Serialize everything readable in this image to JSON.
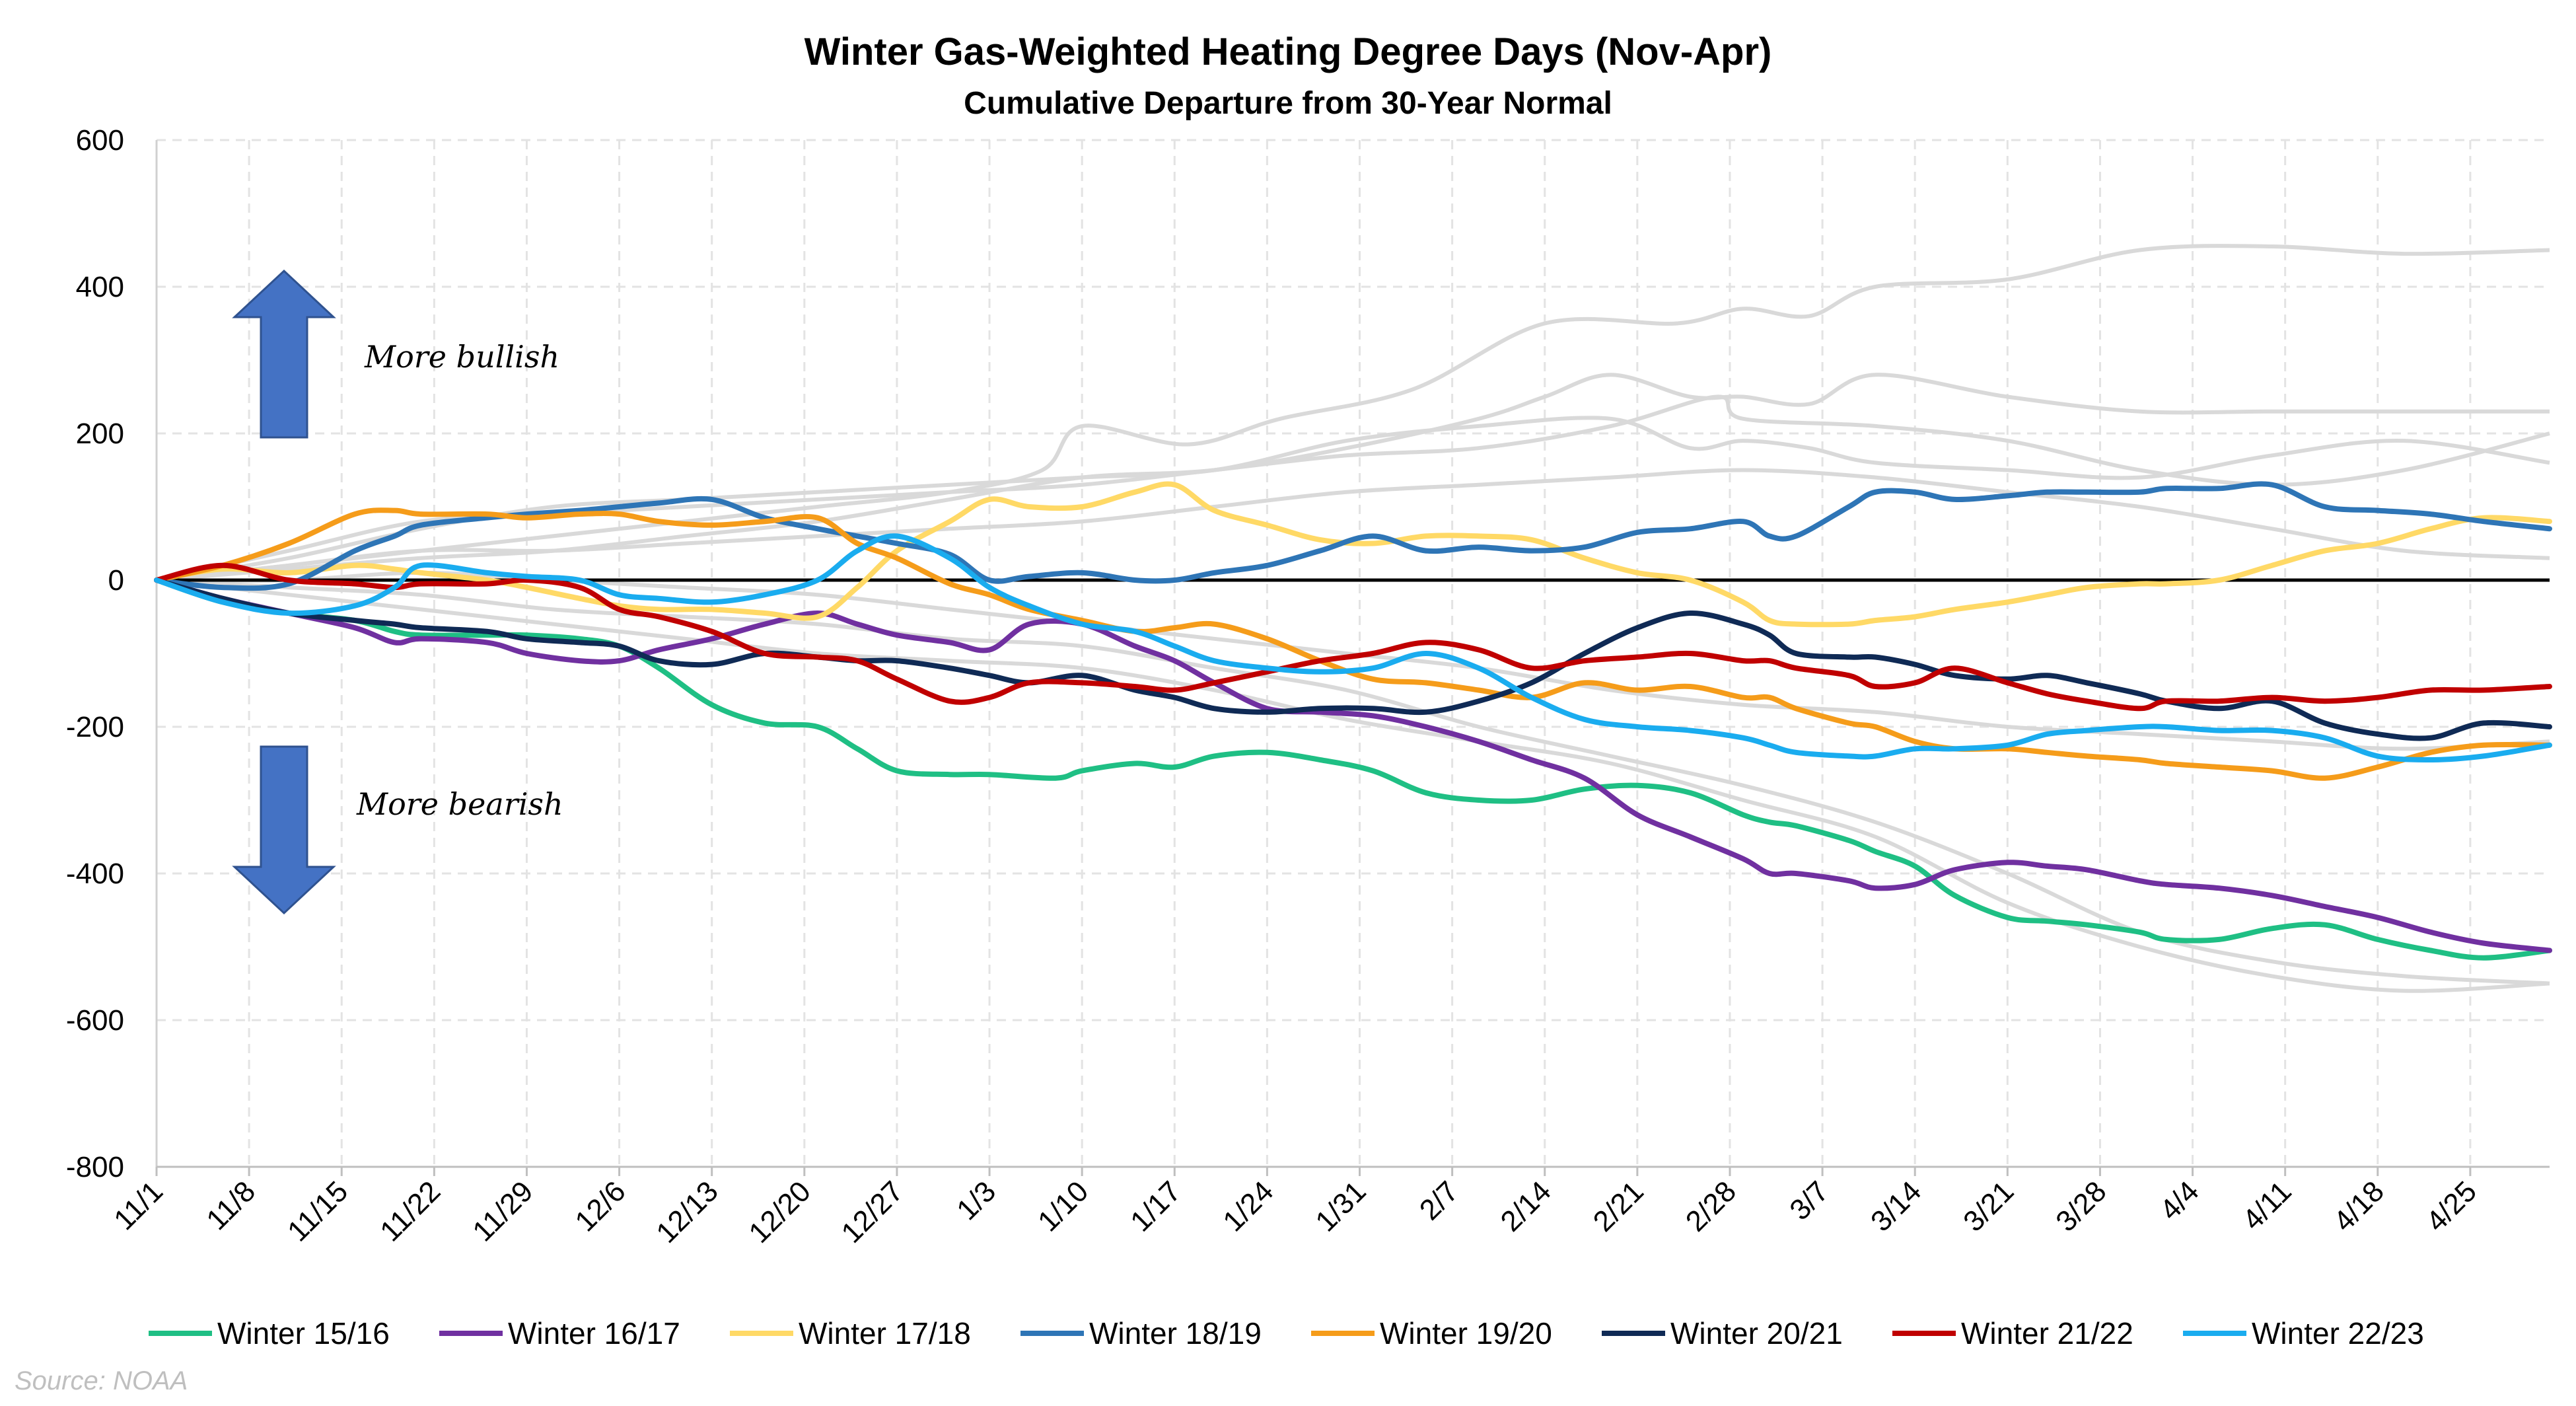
{
  "chart_data": {
    "type": "line",
    "title": "Winter Gas-Weighted Heating Degree Days (Nov-Apr)",
    "subtitle": "Cumulative Departure from 30-Year Normal",
    "ylim": [
      -800,
      600
    ],
    "yticks": [
      600,
      400,
      200,
      0,
      -200,
      -400,
      -600,
      -800
    ],
    "ytick_labels": [
      "600",
      "400",
      "200",
      "0",
      "-200",
      "-400",
      "-600",
      "-800"
    ],
    "xlim": [
      0,
      181
    ],
    "xtick_positions": [
      0,
      7,
      14,
      21,
      28,
      35,
      42,
      49,
      56,
      63,
      70,
      77,
      84,
      91,
      98,
      105,
      112,
      119,
      126,
      133,
      140,
      147,
      154,
      161,
      168,
      175
    ],
    "xtick_labels": [
      "11/1",
      "11/8",
      "11/15",
      "11/22",
      "11/29",
      "12/6",
      "12/13",
      "12/20",
      "12/27",
      "1/3",
      "1/10",
      "1/17",
      "1/24",
      "1/31",
      "2/7",
      "2/14",
      "2/21",
      "2/28",
      "3/7",
      "3/14",
      "3/21",
      "3/28",
      "4/4",
      "4/11",
      "4/18",
      "4/25"
    ],
    "grid": "dashed",
    "zero_line": true,
    "annotations": {
      "bullish": "More bullish",
      "bearish": "More bearish",
      "arrow_color": "#4472C4"
    },
    "source": "Source: NOAA",
    "legend_position": "bottom",
    "background_color": "#d9d9d9",
    "background_series": [
      {
        "x": [
          0,
          10,
          20,
          30,
          40,
          50,
          60,
          67,
          70,
          78,
          85,
          95,
          105,
          115,
          120,
          125,
          130,
          140,
          150,
          160,
          170,
          181
        ],
        "values": [
          0,
          20,
          40,
          60,
          80,
          100,
          120,
          150,
          210,
          185,
          220,
          260,
          350,
          350,
          370,
          360,
          400,
          410,
          450,
          455,
          445,
          450
        ]
      },
      {
        "x": [
          0,
          10,
          20,
          30,
          40,
          50,
          60,
          70,
          80,
          90,
          100,
          105,
          110,
          116,
          120,
          125,
          130,
          140,
          150,
          160,
          170,
          181
        ],
        "values": [
          0,
          15,
          30,
          40,
          60,
          80,
          110,
          140,
          150,
          180,
          220,
          250,
          280,
          250,
          250,
          240,
          280,
          250,
          230,
          230,
          230,
          230
        ]
      },
      {
        "x": [
          0,
          10,
          20,
          30,
          40,
          50,
          60,
          70,
          80,
          90,
          100,
          110,
          116,
          120,
          125,
          130,
          140,
          150,
          160,
          170,
          181
        ],
        "values": [
          0,
          30,
          70,
          100,
          110,
          120,
          130,
          140,
          150,
          190,
          210,
          220,
          180,
          190,
          180,
          160,
          150,
          140,
          170,
          190,
          160
        ]
      },
      {
        "x": [
          0,
          10,
          20,
          30,
          40,
          50,
          60,
          70,
          80,
          90,
          100,
          110,
          118,
          120,
          130,
          140,
          150,
          160,
          170,
          181
        ],
        "values": [
          0,
          40,
          80,
          90,
          100,
          110,
          120,
          130,
          150,
          170,
          180,
          210,
          250,
          220,
          210,
          190,
          150,
          130,
          150,
          200
        ]
      },
      {
        "x": [
          0,
          10,
          20,
          30,
          40,
          50,
          60,
          70,
          80,
          90,
          100,
          110,
          120,
          130,
          140,
          150,
          160,
          170,
          181
        ],
        "values": [
          0,
          20,
          40,
          40,
          50,
          60,
          70,
          80,
          100,
          120,
          130,
          140,
          150,
          140,
          120,
          100,
          70,
          40,
          30
        ]
      },
      {
        "x": [
          0,
          10,
          20,
          30,
          40,
          50,
          60,
          70,
          80,
          90,
          100,
          110,
          120,
          130,
          140,
          150,
          160,
          170,
          181
        ],
        "values": [
          0,
          -10,
          -20,
          -40,
          -50,
          -60,
          -80,
          -90,
          -120,
          -150,
          -200,
          -240,
          -280,
          -330,
          -400,
          -480,
          -520,
          -540,
          -550
        ]
      },
      {
        "x": [
          0,
          10,
          20,
          30,
          40,
          50,
          60,
          70,
          80,
          90,
          100,
          110,
          120,
          130,
          140,
          150,
          160,
          170,
          181
        ],
        "values": [
          0,
          -20,
          -40,
          -60,
          -80,
          -100,
          -110,
          -120,
          -150,
          -190,
          -220,
          -250,
          -300,
          -350,
          -440,
          -500,
          -540,
          -560,
          -550
        ]
      },
      {
        "x": [
          0,
          10,
          20,
          30,
          40,
          50,
          60,
          70,
          80,
          90,
          100,
          110,
          120,
          130,
          140,
          150,
          160,
          170,
          181
        ],
        "values": [
          0,
          0,
          10,
          0,
          -10,
          -20,
          -40,
          -60,
          -80,
          -100,
          -120,
          -150,
          -170,
          -180,
          -200,
          -210,
          -220,
          -230,
          -220
        ]
      }
    ],
    "series": [
      {
        "name": "Winter 15/16",
        "color": "#1FBF84",
        "x": [
          0,
          5,
          10,
          15,
          18,
          20,
          25,
          28,
          32,
          35,
          38,
          42,
          46,
          50,
          53,
          56,
          60,
          63,
          68,
          70,
          74,
          77,
          80,
          84,
          88,
          92,
          96,
          100,
          104,
          108,
          112,
          116,
          120,
          122,
          124,
          128,
          130,
          133,
          136,
          140,
          143,
          146,
          150,
          152,
          156,
          160,
          164,
          168,
          172,
          176,
          181
        ],
        "values": [
          0,
          -30,
          -45,
          -55,
          -70,
          -75,
          -75,
          -75,
          -80,
          -90,
          -120,
          -170,
          -195,
          -200,
          -230,
          -260,
          -265,
          -265,
          -270,
          -260,
          -250,
          -255,
          -240,
          -235,
          -245,
          -260,
          -290,
          -300,
          -300,
          -285,
          -280,
          -290,
          -320,
          -330,
          -335,
          -355,
          -370,
          -390,
          -430,
          -460,
          -465,
          -470,
          -480,
          -490,
          -490,
          -475,
          -470,
          -490,
          -505,
          -515,
          -505
        ]
      },
      {
        "name": "Winter 16/17",
        "color": "#7030A0",
        "x": [
          0,
          5,
          10,
          15,
          18,
          20,
          25,
          28,
          32,
          35,
          38,
          42,
          46,
          50,
          53,
          56,
          60,
          63,
          66,
          70,
          74,
          77,
          80,
          84,
          88,
          92,
          96,
          100,
          104,
          108,
          112,
          116,
          120,
          122,
          124,
          128,
          130,
          133,
          136,
          140,
          143,
          146,
          150,
          152,
          156,
          160,
          164,
          168,
          172,
          176,
          181
        ],
        "values": [
          0,
          -25,
          -45,
          -65,
          -85,
          -80,
          -85,
          -100,
          -110,
          -110,
          -95,
          -80,
          -60,
          -45,
          -60,
          -75,
          -85,
          -95,
          -60,
          -60,
          -90,
          -110,
          -140,
          -175,
          -180,
          -185,
          -200,
          -220,
          -245,
          -270,
          -320,
          -350,
          -380,
          -400,
          -400,
          -410,
          -420,
          -415,
          -395,
          -385,
          -390,
          -395,
          -410,
          -415,
          -420,
          -430,
          -445,
          -460,
          -480,
          -495,
          -505
        ]
      },
      {
        "name": "Winter 17/18",
        "color": "#FFD966",
        "x": [
          0,
          5,
          10,
          15,
          18,
          20,
          25,
          28,
          32,
          35,
          38,
          42,
          46,
          50,
          53,
          56,
          60,
          63,
          66,
          70,
          74,
          77,
          80,
          84,
          88,
          92,
          96,
          100,
          104,
          108,
          112,
          116,
          120,
          122,
          124,
          128,
          130,
          133,
          136,
          140,
          143,
          146,
          150,
          152,
          156,
          160,
          164,
          168,
          172,
          176,
          181
        ],
        "values": [
          0,
          15,
          10,
          20,
          15,
          10,
          0,
          -10,
          -25,
          -35,
          -40,
          -40,
          -45,
          -50,
          -10,
          40,
          80,
          110,
          100,
          100,
          120,
          130,
          95,
          75,
          55,
          50,
          60,
          60,
          55,
          30,
          10,
          0,
          -30,
          -55,
          -60,
          -60,
          -55,
          -50,
          -40,
          -30,
          -20,
          -10,
          -5,
          -5,
          0,
          20,
          40,
          50,
          70,
          85,
          80
        ]
      },
      {
        "name": "Winter 18/19",
        "color": "#2E75B6",
        "x": [
          0,
          5,
          10,
          15,
          18,
          20,
          25,
          28,
          32,
          35,
          38,
          42,
          46,
          50,
          53,
          56,
          60,
          63,
          66,
          70,
          74,
          77,
          80,
          84,
          88,
          92,
          96,
          100,
          104,
          108,
          112,
          116,
          120,
          122,
          124,
          128,
          130,
          133,
          136,
          140,
          143,
          146,
          150,
          152,
          156,
          160,
          164,
          168,
          172,
          176,
          181
        ],
        "values": [
          0,
          -10,
          -5,
          40,
          60,
          75,
          85,
          90,
          95,
          100,
          105,
          110,
          85,
          70,
          60,
          50,
          35,
          0,
          5,
          10,
          0,
          0,
          10,
          20,
          40,
          60,
          40,
          45,
          40,
          45,
          65,
          70,
          80,
          60,
          60,
          100,
          120,
          120,
          110,
          115,
          120,
          120,
          120,
          125,
          125,
          130,
          100,
          95,
          90,
          80,
          70
        ]
      },
      {
        "name": "Winter 19/20",
        "color": "#F59C1A",
        "x": [
          0,
          5,
          10,
          15,
          18,
          20,
          25,
          28,
          32,
          35,
          38,
          42,
          46,
          50,
          53,
          56,
          60,
          63,
          66,
          70,
          74,
          77,
          80,
          84,
          88,
          92,
          96,
          100,
          104,
          108,
          112,
          116,
          120,
          122,
          124,
          128,
          130,
          133,
          136,
          140,
          143,
          146,
          150,
          152,
          156,
          160,
          164,
          168,
          172,
          176,
          181
        ],
        "values": [
          0,
          20,
          50,
          90,
          95,
          90,
          90,
          85,
          90,
          90,
          80,
          75,
          80,
          85,
          50,
          30,
          -5,
          -20,
          -40,
          -55,
          -70,
          -65,
          -60,
          -80,
          -110,
          -135,
          -140,
          -150,
          -160,
          -140,
          -150,
          -145,
          -160,
          -160,
          -175,
          -195,
          -200,
          -220,
          -230,
          -230,
          -235,
          -240,
          -245,
          -250,
          -255,
          -260,
          -270,
          -255,
          -235,
          -225,
          -225
        ]
      },
      {
        "name": "Winter 20/21",
        "color": "#0F2A55",
        "x": [
          0,
          5,
          10,
          15,
          18,
          20,
          25,
          28,
          32,
          35,
          38,
          42,
          46,
          50,
          53,
          56,
          60,
          63,
          66,
          70,
          74,
          77,
          80,
          84,
          88,
          92,
          96,
          100,
          104,
          108,
          112,
          116,
          120,
          122,
          124,
          128,
          130,
          133,
          136,
          140,
          143,
          146,
          150,
          152,
          156,
          160,
          164,
          168,
          172,
          176,
          181
        ],
        "values": [
          0,
          -25,
          -45,
          -55,
          -60,
          -65,
          -70,
          -80,
          -85,
          -90,
          -110,
          -115,
          -100,
          -105,
          -110,
          -110,
          -120,
          -130,
          -140,
          -130,
          -150,
          -160,
          -175,
          -180,
          -175,
          -175,
          -180,
          -165,
          -140,
          -100,
          -65,
          -45,
          -60,
          -75,
          -100,
          -105,
          -105,
          -115,
          -130,
          -135,
          -130,
          -140,
          -155,
          -165,
          -175,
          -165,
          -195,
          -210,
          -215,
          -195,
          -200
        ]
      },
      {
        "name": "Winter 21/22",
        "color": "#C00000",
        "x": [
          0,
          5,
          10,
          15,
          18,
          20,
          25,
          28,
          32,
          35,
          38,
          42,
          46,
          50,
          53,
          56,
          60,
          63,
          66,
          70,
          74,
          77,
          80,
          84,
          88,
          92,
          96,
          100,
          104,
          108,
          112,
          116,
          120,
          122,
          124,
          128,
          130,
          133,
          136,
          140,
          143,
          146,
          150,
          152,
          156,
          160,
          164,
          168,
          172,
          176,
          181
        ],
        "values": [
          0,
          20,
          0,
          -5,
          -10,
          -5,
          -5,
          0,
          -10,
          -40,
          -50,
          -70,
          -100,
          -105,
          -110,
          -135,
          -165,
          -160,
          -140,
          -140,
          -145,
          -150,
          -140,
          -125,
          -110,
          -100,
          -85,
          -95,
          -120,
          -110,
          -105,
          -100,
          -110,
          -110,
          -120,
          -130,
          -145,
          -140,
          -120,
          -140,
          -155,
          -165,
          -175,
          -165,
          -165,
          -160,
          -165,
          -160,
          -150,
          -150,
          -145
        ]
      },
      {
        "name": "Winter 22/23",
        "color": "#1AACEF",
        "x": [
          0,
          5,
          10,
          15,
          18,
          20,
          25,
          28,
          32,
          35,
          38,
          42,
          46,
          50,
          53,
          56,
          60,
          63,
          66,
          70,
          74,
          77,
          80,
          84,
          88,
          92,
          96,
          100,
          104,
          108,
          112,
          116,
          120,
          122,
          124,
          128,
          130,
          133,
          136,
          140,
          143,
          146,
          150,
          152,
          156,
          160,
          164,
          168,
          172,
          176,
          181
        ],
        "values": [
          0,
          -30,
          -45,
          -35,
          -10,
          20,
          10,
          5,
          0,
          -20,
          -25,
          -30,
          -20,
          0,
          40,
          60,
          30,
          -10,
          -35,
          -60,
          -70,
          -90,
          -110,
          -120,
          -125,
          -120,
          -100,
          -120,
          -160,
          -190,
          -200,
          -205,
          -215,
          -225,
          -235,
          -240,
          -240,
          -230,
          -230,
          -225,
          -210,
          -205,
          -200,
          -200,
          -205,
          -205,
          -215,
          -240,
          -245,
          -240,
          -225
        ]
      }
    ]
  }
}
